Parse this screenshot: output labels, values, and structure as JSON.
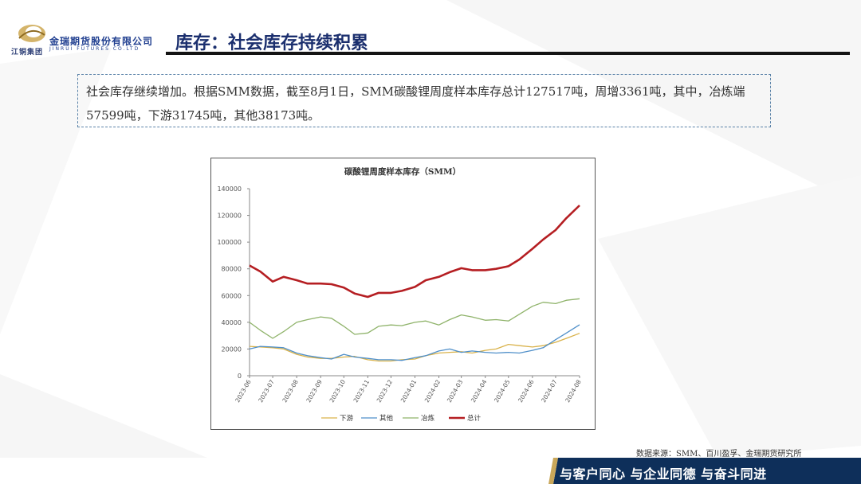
{
  "header": {
    "company_cn": "金瑞期货股份有限公司",
    "company_en": "JINRUI FUTURES CO.LTD",
    "group_name": "江铜集团",
    "title": "库存：社会库存持续积累"
  },
  "summary": {
    "text": "社会库存继续增加。根据SMM数据，截至8月1日，SMM碳酸锂周度样本库存总计127517吨，周增3361吨，其中，冶炼端57599吨，下游31745吨，其他38173吨。"
  },
  "source": "数据来源：SMM、百川盈孚、金瑞期货研究所",
  "footer": {
    "slogan": "与客户同心 与企业同德 与奋斗同进"
  },
  "colors": {
    "brand_navy": "#1b2f6e",
    "footer_band": "#0e2f5a",
    "downstream": "#d9b24a",
    "other": "#4f8fc9",
    "smelter": "#8fb36a",
    "total": "#b51e22"
  },
  "chart_data": {
    "type": "line",
    "title": "碳酸锂周度样本库存（SMM）",
    "ylim": [
      0,
      140000
    ],
    "yticks": [
      0,
      20000,
      40000,
      60000,
      80000,
      100000,
      120000,
      140000
    ],
    "xticks": [
      "2023-06",
      "2023-07",
      "2023-08",
      "2023-09",
      "2023-10",
      "2023-11",
      "2023-12",
      "2024-01",
      "2024-02",
      "2024-03",
      "2024-04",
      "2024-05",
      "2024-06",
      "2024-07",
      "2024-08"
    ],
    "legend_position": "bottom",
    "series": [
      {
        "name": "下游",
        "color": "#d9b24a",
        "width": 1.3,
        "points": [
          [
            "2023-06-01",
            22000
          ],
          [
            "2023-06-15",
            21500
          ],
          [
            "2023-07-01",
            21000
          ],
          [
            "2023-07-15",
            20000
          ],
          [
            "2023-08-01",
            16000
          ],
          [
            "2023-08-15",
            14000
          ],
          [
            "2023-09-01",
            13000
          ],
          [
            "2023-09-15",
            13000
          ],
          [
            "2023-10-01",
            14000
          ],
          [
            "2023-10-15",
            14500
          ],
          [
            "2023-11-01",
            12000
          ],
          [
            "2023-11-15",
            11000
          ],
          [
            "2023-12-01",
            11000
          ],
          [
            "2023-12-15",
            12000
          ],
          [
            "2024-01-01",
            12500
          ],
          [
            "2024-01-15",
            15000
          ],
          [
            "2024-02-01",
            17000
          ],
          [
            "2024-02-15",
            17500
          ],
          [
            "2024-03-01",
            18000
          ],
          [
            "2024-03-15",
            17000
          ],
          [
            "2024-04-01",
            19000
          ],
          [
            "2024-04-15",
            20000
          ],
          [
            "2024-05-01",
            23500
          ],
          [
            "2024-05-15",
            22500
          ],
          [
            "2024-06-01",
            21500
          ],
          [
            "2024-06-15",
            22500
          ],
          [
            "2024-07-01",
            25000
          ],
          [
            "2024-07-15",
            28000
          ],
          [
            "2024-08-01",
            31745
          ]
        ]
      },
      {
        "name": "其他",
        "color": "#4f8fc9",
        "width": 1.3,
        "points": [
          [
            "2023-06-01",
            20000
          ],
          [
            "2023-06-15",
            22000
          ],
          [
            "2023-07-01",
            21500
          ],
          [
            "2023-07-15",
            21000
          ],
          [
            "2023-08-01",
            17000
          ],
          [
            "2023-08-15",
            15000
          ],
          [
            "2023-09-01",
            13500
          ],
          [
            "2023-09-15",
            12500
          ],
          [
            "2023-10-01",
            16000
          ],
          [
            "2023-10-15",
            14000
          ],
          [
            "2023-11-01",
            13000
          ],
          [
            "2023-11-15",
            12000
          ],
          [
            "2023-12-01",
            12000
          ],
          [
            "2023-12-15",
            11500
          ],
          [
            "2024-01-01",
            13500
          ],
          [
            "2024-01-15",
            15000
          ],
          [
            "2024-02-01",
            18500
          ],
          [
            "2024-02-15",
            20000
          ],
          [
            "2024-03-01",
            17500
          ],
          [
            "2024-03-15",
            18500
          ],
          [
            "2024-04-01",
            17500
          ],
          [
            "2024-04-15",
            17000
          ],
          [
            "2024-05-01",
            17500
          ],
          [
            "2024-05-15",
            17000
          ],
          [
            "2024-06-01",
            19000
          ],
          [
            "2024-06-15",
            21000
          ],
          [
            "2024-07-01",
            27000
          ],
          [
            "2024-07-15",
            32000
          ],
          [
            "2024-08-01",
            38173
          ]
        ]
      },
      {
        "name": "冶炼",
        "color": "#8fb36a",
        "width": 1.3,
        "points": [
          [
            "2023-06-01",
            40000
          ],
          [
            "2023-06-15",
            34000
          ],
          [
            "2023-07-01",
            28000
          ],
          [
            "2023-07-15",
            33000
          ],
          [
            "2023-08-01",
            40000
          ],
          [
            "2023-08-15",
            42000
          ],
          [
            "2023-09-01",
            44000
          ],
          [
            "2023-09-15",
            43000
          ],
          [
            "2023-10-01",
            37000
          ],
          [
            "2023-10-15",
            31000
          ],
          [
            "2023-11-01",
            32000
          ],
          [
            "2023-11-15",
            37000
          ],
          [
            "2023-12-01",
            38000
          ],
          [
            "2023-12-15",
            37500
          ],
          [
            "2024-01-01",
            40000
          ],
          [
            "2024-01-15",
            41000
          ],
          [
            "2024-02-01",
            38000
          ],
          [
            "2024-02-15",
            42000
          ],
          [
            "2024-03-01",
            45500
          ],
          [
            "2024-03-15",
            44000
          ],
          [
            "2024-04-01",
            41500
          ],
          [
            "2024-04-15",
            42000
          ],
          [
            "2024-05-01",
            41000
          ],
          [
            "2024-05-15",
            46000
          ],
          [
            "2024-06-01",
            52000
          ],
          [
            "2024-06-15",
            55000
          ],
          [
            "2024-07-01",
            54000
          ],
          [
            "2024-07-15",
            56500
          ],
          [
            "2024-08-01",
            57599
          ]
        ]
      },
      {
        "name": "总计",
        "color": "#b51e22",
        "width": 2.6,
        "points": [
          [
            "2023-06-01",
            82500
          ],
          [
            "2023-06-15",
            78000
          ],
          [
            "2023-07-01",
            70500
          ],
          [
            "2023-07-15",
            74000
          ],
          [
            "2023-08-01",
            71500
          ],
          [
            "2023-08-15",
            69000
          ],
          [
            "2023-09-01",
            69000
          ],
          [
            "2023-09-15",
            68500
          ],
          [
            "2023-10-01",
            66000
          ],
          [
            "2023-10-15",
            61500
          ],
          [
            "2023-11-01",
            59000
          ],
          [
            "2023-11-15",
            62000
          ],
          [
            "2023-12-01",
            62000
          ],
          [
            "2023-12-15",
            63500
          ],
          [
            "2024-01-01",
            66500
          ],
          [
            "2024-01-15",
            71500
          ],
          [
            "2024-02-01",
            74000
          ],
          [
            "2024-02-15",
            77500
          ],
          [
            "2024-03-01",
            80500
          ],
          [
            "2024-03-15",
            79000
          ],
          [
            "2024-04-01",
            79000
          ],
          [
            "2024-04-15",
            80000
          ],
          [
            "2024-05-01",
            82000
          ],
          [
            "2024-05-15",
            87000
          ],
          [
            "2024-06-01",
            95000
          ],
          [
            "2024-06-15",
            102000
          ],
          [
            "2024-07-01",
            109000
          ],
          [
            "2024-07-15",
            118000
          ],
          [
            "2024-08-01",
            127517
          ]
        ]
      }
    ]
  }
}
